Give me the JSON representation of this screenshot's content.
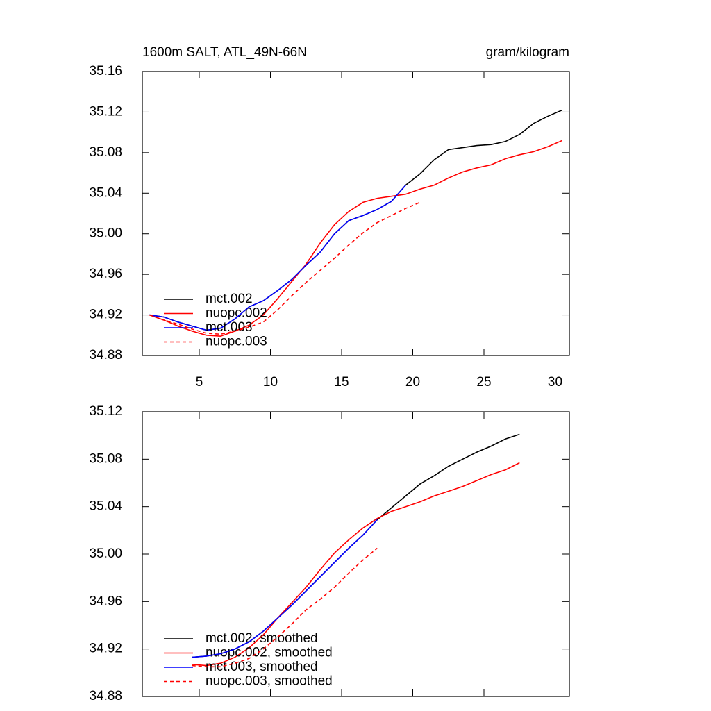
{
  "chart_data": [
    {
      "type": "line",
      "title": "1600m SALT, ATL_49N-66N",
      "right_title": "gram/kilogram",
      "x": [
        1.5,
        2.5,
        3.5,
        4.5,
        5.5,
        6.5,
        7.5,
        8.5,
        9.5,
        10.5,
        11.5,
        12.5,
        13.5,
        14.5,
        15.5,
        16.5,
        17.5,
        18.5,
        19.5,
        20.5,
        21.5,
        22.5,
        23.5,
        24.5,
        25.5,
        26.5,
        27.5,
        28.5,
        29.5,
        30.5
      ],
      "xlim": [
        1,
        31
      ],
      "xticks": [
        5,
        10,
        15,
        20,
        25,
        30
      ],
      "ylim": [
        34.88,
        35.16
      ],
      "yticks": [
        34.88,
        34.92,
        34.96,
        {
          "value": 35.0,
          "label": "35.00"
        },
        35.04,
        35.08,
        35.12,
        35.16
      ],
      "legend": "lower left",
      "series": [
        {
          "name": "mct.002",
          "color": "#000000",
          "dash": false,
          "values": [
            34.92,
            34.918,
            34.913,
            34.909,
            34.905,
            34.907,
            34.916,
            34.928,
            34.934,
            34.944,
            34.955,
            34.969,
            34.982,
            35.0,
            35.013,
            35.018,
            35.024,
            35.032,
            35.048,
            35.059,
            35.073,
            35.083,
            35.085,
            35.087,
            35.088,
            35.091,
            35.098,
            35.109,
            35.116,
            35.122
          ]
        },
        {
          "name": "nuopc.002",
          "color": "#ff0000",
          "dash": false,
          "values": [
            34.92,
            34.915,
            34.909,
            34.904,
            34.9,
            34.899,
            34.904,
            34.91,
            34.92,
            34.936,
            34.953,
            34.97,
            34.991,
            35.009,
            35.022,
            35.031,
            35.035,
            35.037,
            35.039,
            35.044,
            35.048,
            35.055,
            35.061,
            35.065,
            35.068,
            35.074,
            35.078,
            35.081,
            35.086,
            35.092
          ]
        },
        {
          "name": "mct.003",
          "color": "#0000ff",
          "dash": false,
          "values": [
            34.92,
            34.918,
            34.913,
            34.909,
            34.905,
            34.907,
            34.916,
            34.928,
            34.934,
            34.944,
            34.955,
            34.969,
            34.982,
            35.0,
            35.013,
            35.018,
            35.024,
            35.032,
            35.048,
            null,
            null,
            null,
            null,
            null,
            null,
            null,
            null,
            null,
            null,
            null
          ]
        },
        {
          "name": "nuopc.003",
          "color": "#ff0000",
          "dash": true,
          "values": [
            34.92,
            34.915,
            34.911,
            34.906,
            34.902,
            34.901,
            34.904,
            34.908,
            34.913,
            34.925,
            34.939,
            34.952,
            34.964,
            34.976,
            34.989,
            35.001,
            35.011,
            35.018,
            35.025,
            35.031,
            null,
            null,
            null,
            null,
            null,
            null,
            null,
            null,
            null,
            null
          ]
        }
      ]
    },
    {
      "type": "line",
      "x": [
        4.5,
        5.5,
        6.5,
        7.5,
        8.5,
        9.5,
        10.5,
        11.5,
        12.5,
        13.5,
        14.5,
        15.5,
        16.5,
        17.5,
        18.5,
        19.5,
        20.5,
        21.5,
        22.5,
        23.5,
        24.5,
        25.5,
        26.5,
        27.5
      ],
      "xlim": [
        1,
        31
      ],
      "xticks": [
        5,
        10,
        15,
        20,
        25,
        30
      ],
      "ylim": [
        34.88,
        35.12
      ],
      "yticks": [
        34.88,
        34.92,
        34.96,
        {
          "value": 35.0,
          "label": "35.00"
        },
        35.04,
        35.08,
        35.12
      ],
      "legend": "lower left",
      "series": [
        {
          "name": "mct.002, smoothed",
          "color": "#000000",
          "dash": false,
          "values": [
            34.913,
            34.914,
            34.916,
            34.92,
            34.926,
            34.935,
            34.946,
            34.957,
            34.969,
            34.981,
            34.993,
            35.005,
            35.016,
            35.029,
            35.039,
            35.049,
            35.059,
            35.066,
            35.074,
            35.08,
            35.086,
            35.091,
            35.097,
            35.101
          ]
        },
        {
          "name": "nuopc.002, smoothed",
          "color": "#ff0000",
          "dash": false,
          "values": [
            34.907,
            34.906,
            34.908,
            34.913,
            34.921,
            34.932,
            34.946,
            34.959,
            34.972,
            34.987,
            35.001,
            35.012,
            35.022,
            35.03,
            35.036,
            35.04,
            35.044,
            35.049,
            35.053,
            35.057,
            35.062,
            35.067,
            35.071,
            35.077
          ]
        },
        {
          "name": "mct.003, smoothed",
          "color": "#0000ff",
          "dash": false,
          "values": [
            34.913,
            34.914,
            34.916,
            34.92,
            34.926,
            34.935,
            34.946,
            34.957,
            34.969,
            34.981,
            34.993,
            35.005,
            35.016,
            35.029,
            null,
            null,
            null,
            null,
            null,
            null,
            null,
            null,
            null,
            null
          ]
        },
        {
          "name": "nuopc.003, smoothed",
          "color": "#ff0000",
          "dash": true,
          "values": [
            34.906,
            34.905,
            34.905,
            34.908,
            34.912,
            34.92,
            34.93,
            34.941,
            34.953,
            34.962,
            34.972,
            34.984,
            34.995,
            35.005,
            null,
            null,
            null,
            null,
            null,
            null,
            null,
            null,
            null,
            null
          ]
        }
      ]
    }
  ]
}
